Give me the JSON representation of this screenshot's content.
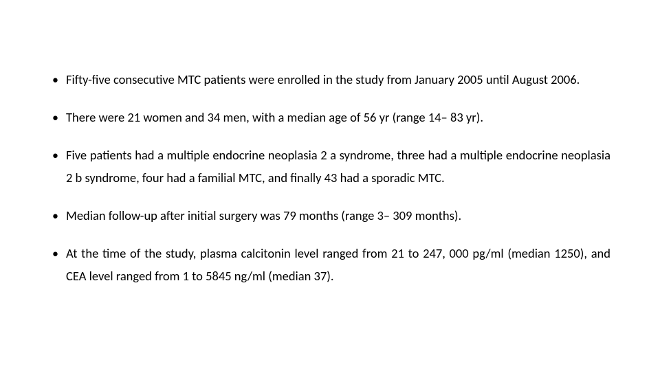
{
  "text_color": "#000000",
  "background_color": "#ffffff",
  "font_size_pt": 14,
  "bullets": [
    "Fifty-five consecutive MTC patients were enrolled in the study from January 2005 until August 2006.",
    "There were 21 women and 34 men, with a median age of 56 yr (range 14– 83 yr).",
    "Five patients had a multiple endocrine neoplasia 2 a syndrome, three had a multiple endocrine neoplasia 2 b syndrome, four had a familial MTC, and finally 43 had a sporadic MTC.",
    "Median follow-up after initial surgery was 79 months (range 3– 309 months).",
    "At the time of the study, plasma calcitonin level ranged from 21 to 247, 000 pg/ml (median 1250), and CEA level ranged from 1 to 5845 ng/ml (median 37)."
  ]
}
